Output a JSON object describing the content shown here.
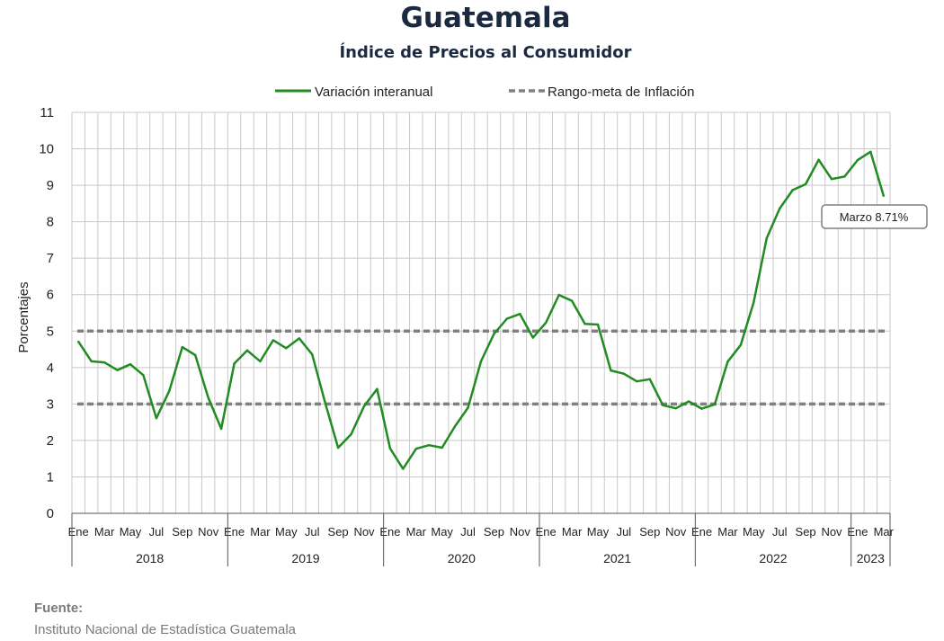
{
  "chart_data": {
    "type": "line",
    "title": "Guatemala",
    "subtitle": "Índice de Precios al Consumidor",
    "ylabel": "Porcentajes",
    "ylim": [
      0,
      11
    ],
    "yticks": [
      "0",
      "1",
      "2",
      "3",
      "4",
      "5",
      "6",
      "7",
      "8",
      "9",
      "10",
      "11"
    ],
    "grid": true,
    "legend_position": "top",
    "month_labels": [
      "Ene",
      "Mar",
      "May",
      "Jul",
      "Sep",
      "Nov"
    ],
    "years": [
      "2018",
      "2019",
      "2020",
      "2021",
      "2022",
      "2023"
    ],
    "series": [
      {
        "name": "Variación interanual",
        "color": "#228b22",
        "style": "solid",
        "values": [
          4.71,
          4.17,
          4.14,
          3.93,
          4.09,
          3.79,
          2.61,
          3.36,
          4.56,
          4.34,
          3.17,
          2.32,
          4.11,
          4.47,
          4.17,
          4.75,
          4.53,
          4.8,
          4.36,
          3.03,
          1.8,
          2.17,
          2.94,
          3.41,
          1.78,
          1.22,
          1.77,
          1.87,
          1.8,
          2.39,
          2.9,
          4.17,
          4.92,
          5.34,
          5.47,
          4.82,
          5.23,
          5.99,
          5.83,
          5.2,
          5.18,
          3.92,
          3.83,
          3.62,
          3.68,
          2.97,
          2.88,
          3.07,
          2.87,
          2.99,
          4.16,
          4.62,
          5.79,
          7.55,
          8.36,
          8.87,
          9.03,
          9.7,
          9.17,
          9.24,
          9.69,
          9.92,
          8.71
        ]
      },
      {
        "name": "Rango-meta de Inflación",
        "color": "#808080",
        "style": "dashed",
        "bounds": [
          3,
          5
        ]
      }
    ],
    "annotation": {
      "text": "Marzo 8.71%",
      "index": 62,
      "value": 8.71
    }
  },
  "source": {
    "label": "Fuente:",
    "text": "Instituto Nacional de Estadística Guatemala"
  }
}
